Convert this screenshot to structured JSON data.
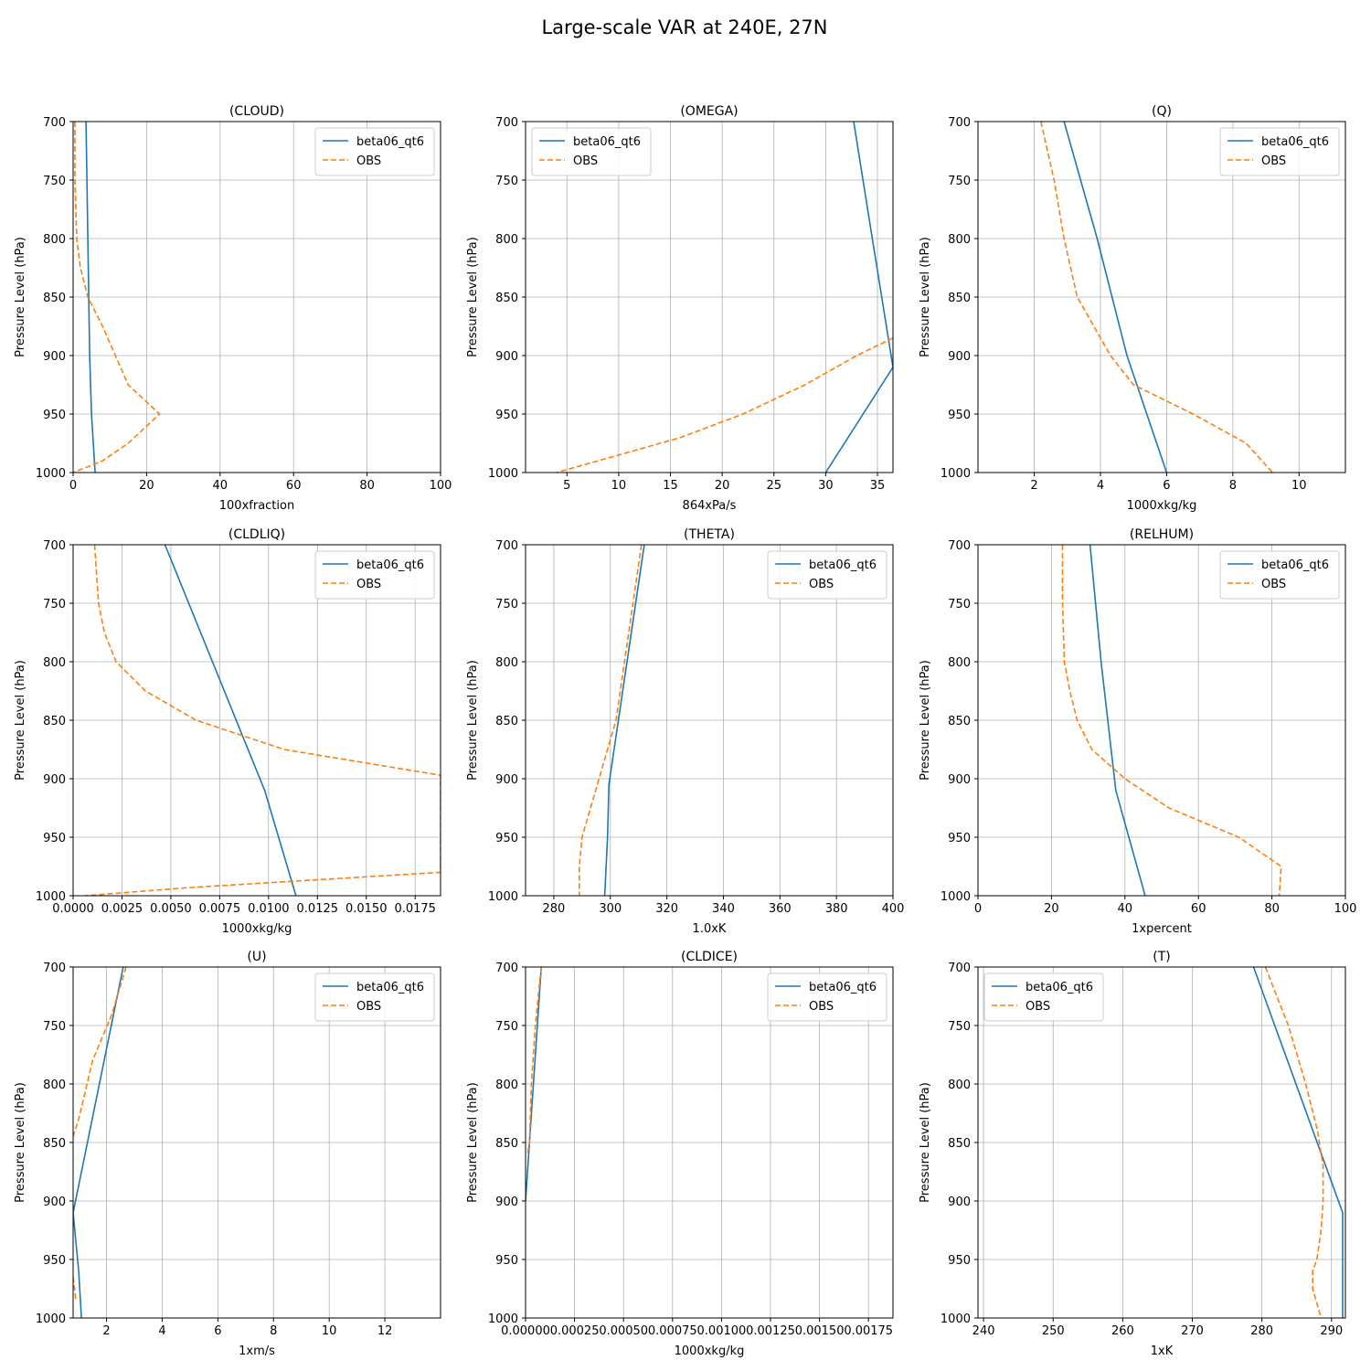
{
  "figure": {
    "title": "Large-scale VAR at 240E, 27N"
  },
  "colors": {
    "model": "#1f77b4",
    "obs": "#ff7f0e",
    "grid": "#b0b0b0",
    "axes": "#000000"
  },
  "chart_data": [
    {
      "type": "line",
      "title": "(CLOUD)",
      "xlabel": "100xfraction",
      "ylabel": "Pressure Level (hPa)",
      "xlim": [
        0,
        100
      ],
      "xticks": [
        0,
        20,
        40,
        60,
        80,
        100
      ],
      "xtick_labels": [
        "0",
        "20",
        "40",
        "60",
        "80",
        "100"
      ],
      "ylim": [
        1000,
        700
      ],
      "yticks": [
        700,
        750,
        800,
        850,
        900,
        950,
        1000
      ],
      "grid": true,
      "legend": "upper right",
      "series": [
        {
          "name": "beta06_qt6",
          "style": "solid",
          "x": [
            3.5,
            4,
            4.5,
            5,
            5.5,
            6
          ],
          "y": [
            700,
            800,
            900,
            950,
            975,
            1000
          ]
        },
        {
          "name": "OBS",
          "style": "dashed",
          "x": [
            0.5,
            0.5,
            1,
            2,
            4,
            8,
            15,
            23.5,
            15,
            8,
            0
          ],
          "y": [
            700,
            750,
            800,
            825,
            850,
            875,
            925,
            950,
            975,
            990,
            1000
          ]
        }
      ]
    },
    {
      "type": "line",
      "title": "(OMEGA)",
      "xlabel": "864xPa/s",
      "ylabel": "Pressure Level (hPa)",
      "xlim": [
        1,
        36.5
      ],
      "xticks": [
        5,
        10,
        15,
        20,
        25,
        30,
        35
      ],
      "xtick_labels": [
        "5",
        "10",
        "15",
        "20",
        "25",
        "30",
        "35"
      ],
      "ylim": [
        1000,
        700
      ],
      "yticks": [
        700,
        750,
        800,
        850,
        900,
        950,
        1000
      ],
      "grid": true,
      "legend": "upper left",
      "series": [
        {
          "name": "beta06_qt6",
          "style": "solid",
          "x": [
            32.7,
            34.5,
            36.5,
            30
          ],
          "y": [
            700,
            800,
            910,
            1000
          ]
        },
        {
          "name": "OBS",
          "style": "dashed",
          "x": [
            36.5,
            33,
            28,
            22,
            16,
            10,
            4
          ],
          "y": [
            885,
            900,
            925,
            950,
            970,
            985,
            1000
          ]
        }
      ]
    },
    {
      "type": "line",
      "title": "(Q)",
      "xlabel": "1000xkg/kg",
      "ylabel": "Pressure Level (hPa)",
      "xlim": [
        0.3,
        11.4
      ],
      "xticks": [
        2,
        4,
        6,
        8,
        10
      ],
      "xtick_labels": [
        "2",
        "4",
        "6",
        "8",
        "10"
      ],
      "ylim": [
        1000,
        700
      ],
      "yticks": [
        700,
        750,
        800,
        850,
        900,
        950,
        1000
      ],
      "grid": true,
      "legend": "upper right",
      "series": [
        {
          "name": "beta06_qt6",
          "style": "solid",
          "x": [
            2.9,
            3.9,
            4.8,
            6
          ],
          "y": [
            700,
            800,
            900,
            1000
          ]
        },
        {
          "name": "OBS",
          "style": "dashed",
          "x": [
            2.2,
            2.6,
            2.9,
            3.3,
            3.8,
            4.3,
            5,
            6.8,
            8.4,
            9.2
          ],
          "y": [
            700,
            750,
            800,
            850,
            875,
            900,
            925,
            950,
            975,
            1000
          ]
        }
      ]
    },
    {
      "type": "line",
      "title": "(CLDLIQ)",
      "xlabel": "1000xkg/kg",
      "ylabel": "Pressure Level (hPa)",
      "xlim": [
        0,
        0.0188
      ],
      "xticks": [
        0,
        0.0025,
        0.005,
        0.0075,
        0.01,
        0.0125,
        0.015,
        0.0175
      ],
      "xtick_labels": [
        "0.0000",
        "0.0025",
        "0.0050",
        "0.0075",
        "0.0100",
        "0.0125",
        "0.0150",
        "0.0175"
      ],
      "ylim": [
        1000,
        700
      ],
      "yticks": [
        700,
        750,
        800,
        850,
        900,
        950,
        1000
      ],
      "grid": true,
      "legend": "upper right",
      "series": [
        {
          "name": "beta06_qt6",
          "style": "solid",
          "x": [
            0.0047,
            0.0098,
            0.0114
          ],
          "y": [
            700,
            910,
            1000
          ]
        },
        {
          "name": "OBS",
          "style": "dashed",
          "x": [
            0.0011,
            0.0013,
            0.0016,
            0.0022,
            0.0037,
            0.0063,
            0.0108,
            0.0188,
            0.0188,
            0.006,
            0.0006
          ],
          "y": [
            700,
            750,
            775,
            800,
            825,
            850,
            875,
            897,
            980,
            993,
            1000
          ]
        }
      ]
    },
    {
      "type": "line",
      "title": "(THETA)",
      "xlabel": "1.0xK",
      "ylabel": "Pressure Level (hPa)",
      "xlim": [
        270,
        400
      ],
      "xticks": [
        280,
        300,
        320,
        340,
        360,
        380,
        400
      ],
      "xtick_labels": [
        "280",
        "300",
        "320",
        "340",
        "360",
        "380",
        "400"
      ],
      "ylim": [
        1000,
        700
      ],
      "yticks": [
        700,
        750,
        800,
        850,
        900,
        950,
        1000
      ],
      "grid": true,
      "legend": "upper right",
      "series": [
        {
          "name": "beta06_qt6",
          "style": "solid",
          "x": [
            312,
            299.5,
            299,
            298
          ],
          "y": [
            700,
            905,
            950,
            1000
          ]
        },
        {
          "name": "OBS",
          "style": "dashed",
          "x": [
            311,
            302,
            299,
            293,
            290,
            289,
            289
          ],
          "y": [
            700,
            850,
            875,
            925,
            950,
            975,
            1000
          ]
        }
      ]
    },
    {
      "type": "line",
      "title": "(RELHUM)",
      "xlabel": "1xpercent",
      "ylabel": "Pressure Level (hPa)",
      "xlim": [
        0,
        100
      ],
      "xticks": [
        0,
        20,
        40,
        60,
        80,
        100
      ],
      "xtick_labels": [
        "0",
        "20",
        "40",
        "60",
        "80",
        "100"
      ],
      "ylim": [
        1000,
        700
      ],
      "yticks": [
        700,
        750,
        800,
        850,
        900,
        950,
        1000
      ],
      "grid": true,
      "legend": "upper right",
      "series": [
        {
          "name": "beta06_qt6",
          "style": "solid",
          "x": [
            30.5,
            33.5,
            37.5,
            45.5
          ],
          "y": [
            700,
            800,
            910,
            1000
          ]
        },
        {
          "name": "OBS",
          "style": "dashed",
          "x": [
            23,
            23,
            23.5,
            25,
            27,
            31,
            40,
            52,
            71,
            82.5,
            82
          ],
          "y": [
            700,
            750,
            800,
            825,
            850,
            875,
            900,
            925,
            950,
            975,
            1000
          ]
        }
      ]
    },
    {
      "type": "line",
      "title": "(U)",
      "xlabel": "1xm/s",
      "ylabel": "",
      "shared_ylabel": "Pressure Level (hPa)",
      "xlim": [
        0.8,
        14
      ],
      "xticks": [
        2,
        4,
        6,
        8,
        10,
        12
      ],
      "xtick_labels": [
        "2",
        "4",
        "6",
        "8",
        "10",
        "12"
      ],
      "ylim": [
        1000,
        700
      ],
      "yticks": [
        700,
        750,
        800,
        850,
        900,
        950,
        1000
      ],
      "grid": true,
      "legend": "upper right",
      "series": [
        {
          "name": "beta06_qt6",
          "style": "solid",
          "x": [
            2.6,
            0.8,
            1.0,
            1.1
          ],
          "y": [
            700,
            910,
            960,
            1000
          ]
        },
        {
          "name": "OBS",
          "style": "dashed",
          "x": [
            2.7,
            2.2,
            1.5,
            1.0,
            0.8
          ],
          "y": [
            700,
            740,
            780,
            830,
            845
          ]
        },
        {
          "name": "OBS",
          "style": "dashed",
          "x": [
            0.8,
            0.9
          ],
          "y": [
            965,
            985
          ]
        }
      ]
    },
    {
      "type": "line",
      "title": "(CLDICE)",
      "xlabel": "1000xkg/kg",
      "ylabel": "Pressure Level (hPa)",
      "xlim": [
        0,
        0.001875
      ],
      "xticks": [
        0,
        0.00025,
        0.0005,
        0.00075,
        0.001,
        0.00125,
        0.0015,
        0.00175
      ],
      "xtick_labels": [
        "0.00000",
        "0.00025",
        "0.00050",
        "0.00075",
        "0.00100",
        "0.00125",
        "0.00150",
        "0.00175"
      ],
      "ylim": [
        1000,
        700
      ],
      "yticks": [
        700,
        750,
        800,
        850,
        900,
        950,
        1000
      ],
      "grid": true,
      "legend": "upper right",
      "series": [
        {
          "name": "beta06_qt6",
          "style": "solid",
          "x": [
            8e-05,
            4e-05,
            0.0
          ],
          "y": [
            700,
            800,
            900
          ]
        },
        {
          "name": "OBS",
          "style": "dashed",
          "x": [
            8e-05,
            5e-05,
            3e-05,
            2e-05,
            1e-05
          ],
          "y": [
            700,
            750,
            800,
            850,
            860
          ]
        }
      ]
    },
    {
      "type": "line",
      "title": "(T)",
      "xlabel": "1xK",
      "ylabel": "Pressure Level (hPa)",
      "xlim": [
        239.2,
        292
      ],
      "xticks": [
        240,
        250,
        260,
        270,
        280,
        290
      ],
      "xtick_labels": [
        "240",
        "250",
        "260",
        "270",
        "280",
        "290"
      ],
      "ylim": [
        1000,
        700
      ],
      "yticks": [
        700,
        750,
        800,
        850,
        900,
        950,
        1000
      ],
      "grid": true,
      "legend": "upper left",
      "series": [
        {
          "name": "beta06_qt6",
          "style": "solid",
          "x": [
            278.8,
            291.6,
            291.6
          ],
          "y": [
            700,
            910,
            1000
          ]
        },
        {
          "name": "OBS",
          "style": "dashed",
          "x": [
            280.5,
            283.8,
            286.3,
            288.0,
            288.8,
            288.8,
            288.5,
            287.9,
            287.3,
            287.3,
            288.5
          ],
          "y": [
            700,
            750,
            800,
            840,
            870,
            900,
            925,
            950,
            960,
            975,
            1000
          ]
        }
      ]
    }
  ]
}
